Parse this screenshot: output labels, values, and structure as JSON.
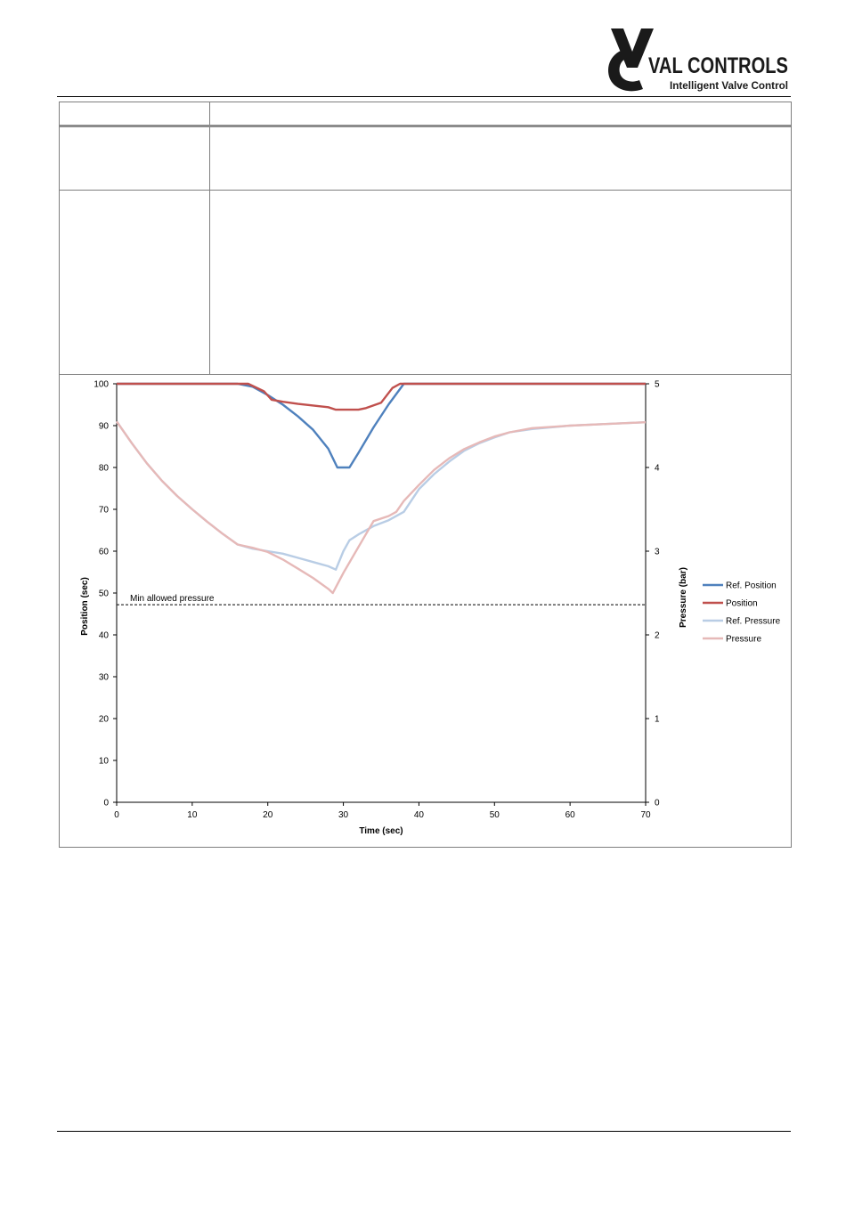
{
  "logo": {
    "name": "VAL CONTROLS",
    "tagline": "Intelligent Valve Control"
  },
  "colors": {
    "ref_position": "#4f81bd",
    "position": "#c0504d",
    "ref_pressure": "#b9cde5",
    "pressure": "#e6b9b8"
  },
  "chart_data": {
    "type": "line",
    "xlabel": "Time (sec)",
    "ylabel": "Position (sec)",
    "y2label": "Pressure (bar)",
    "xlim": [
      0,
      70
    ],
    "ylim": [
      0,
      100
    ],
    "y2lim": [
      0,
      5
    ],
    "x_ticks": [
      "0",
      "10",
      "20",
      "30",
      "40",
      "50",
      "60",
      "70"
    ],
    "y_ticks": [
      "0",
      "10",
      "20",
      "30",
      "40",
      "50",
      "60",
      "70",
      "80",
      "90",
      "100"
    ],
    "y2_ticks": [
      "0",
      "1",
      "2",
      "3",
      "4",
      "5"
    ],
    "grid": false,
    "legend": "right",
    "annotation": {
      "text": "Min allowed pressure",
      "y2": 2.36
    },
    "series": [
      {
        "name": "Ref. Position",
        "axis": "left",
        "color": "#4f81bd",
        "points": [
          [
            0,
            100
          ],
          [
            16,
            100
          ],
          [
            18,
            99.3
          ],
          [
            20,
            97.3
          ],
          [
            22,
            95
          ],
          [
            24,
            92.2
          ],
          [
            26,
            89
          ],
          [
            28,
            84.5
          ],
          [
            29.2,
            80
          ],
          [
            30.8,
            80
          ],
          [
            32,
            83.5
          ],
          [
            34,
            89.6
          ],
          [
            36,
            95.1
          ],
          [
            38,
            100
          ],
          [
            70,
            100
          ]
        ]
      },
      {
        "name": "Position",
        "axis": "left",
        "color": "#c0504d",
        "points": [
          [
            0,
            100
          ],
          [
            17.4,
            100
          ],
          [
            19.5,
            98.2
          ],
          [
            20.5,
            96.2
          ],
          [
            22,
            95.7
          ],
          [
            24,
            95.2
          ],
          [
            26,
            94.8
          ],
          [
            28,
            94.4
          ],
          [
            29,
            93.8
          ],
          [
            32,
            93.8
          ],
          [
            33,
            94.2
          ],
          [
            35,
            95.5
          ],
          [
            36.5,
            99
          ],
          [
            37.5,
            100
          ],
          [
            70,
            100
          ]
        ]
      },
      {
        "name": "Ref. Pressure",
        "axis": "right",
        "color": "#b9cde5",
        "points": [
          [
            0,
            4.55
          ],
          [
            2,
            4.29
          ],
          [
            4,
            4.05
          ],
          [
            6,
            3.84
          ],
          [
            8,
            3.66
          ],
          [
            10,
            3.5
          ],
          [
            12,
            3.35
          ],
          [
            14,
            3.21
          ],
          [
            16,
            3.08
          ],
          [
            18,
            3.03
          ],
          [
            20,
            3.0
          ],
          [
            22,
            2.97
          ],
          [
            24,
            2.92
          ],
          [
            26,
            2.87
          ],
          [
            28,
            2.82
          ],
          [
            29,
            2.78
          ],
          [
            30,
            3.0
          ],
          [
            30.8,
            3.13
          ],
          [
            32,
            3.2
          ],
          [
            34,
            3.3
          ],
          [
            36,
            3.37
          ],
          [
            38,
            3.47
          ],
          [
            40,
            3.74
          ],
          [
            42,
            3.92
          ],
          [
            44,
            4.07
          ],
          [
            46,
            4.2
          ],
          [
            48,
            4.29
          ],
          [
            50,
            4.36
          ],
          [
            52,
            4.42
          ],
          [
            55,
            4.46
          ],
          [
            60,
            4.5
          ],
          [
            65,
            4.52
          ],
          [
            70,
            4.54
          ]
        ]
      },
      {
        "name": "Pressure",
        "axis": "right",
        "color": "#e6b9b8",
        "points": [
          [
            0,
            4.55
          ],
          [
            2,
            4.29
          ],
          [
            4,
            4.05
          ],
          [
            6,
            3.84
          ],
          [
            8,
            3.66
          ],
          [
            10,
            3.5
          ],
          [
            12,
            3.35
          ],
          [
            14,
            3.21
          ],
          [
            16,
            3.08
          ],
          [
            18,
            3.04
          ],
          [
            20,
            2.99
          ],
          [
            22,
            2.9
          ],
          [
            24,
            2.79
          ],
          [
            26,
            2.68
          ],
          [
            28,
            2.55
          ],
          [
            28.6,
            2.5
          ],
          [
            30,
            2.74
          ],
          [
            32,
            3.05
          ],
          [
            34,
            3.36
          ],
          [
            36,
            3.42
          ],
          [
            37,
            3.47
          ],
          [
            38,
            3.6
          ],
          [
            40,
            3.79
          ],
          [
            42,
            3.97
          ],
          [
            44,
            4.11
          ],
          [
            46,
            4.22
          ],
          [
            48,
            4.3
          ],
          [
            50,
            4.37
          ],
          [
            52,
            4.42
          ],
          [
            55,
            4.47
          ],
          [
            60,
            4.5
          ],
          [
            65,
            4.52
          ],
          [
            70,
            4.54
          ]
        ]
      }
    ]
  }
}
